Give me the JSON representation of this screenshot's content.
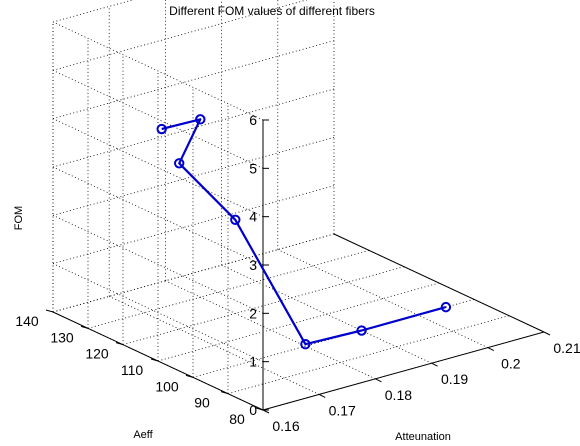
{
  "chart_data": {
    "type": "line",
    "title": "Different FOM values of different fibers",
    "xlabel": "Atteunation",
    "ylabel": "Aeff",
    "zlabel": "FOM",
    "x_ticks": [
      "0.16",
      "0.17",
      "0.18",
      "0.19",
      "0.2",
      "0.21"
    ],
    "y_ticks": [
      "80",
      "90",
      "100",
      "110",
      "120",
      "130",
      "140"
    ],
    "z_ticks": [
      "0",
      "1",
      "2",
      "3",
      "4",
      "5",
      "6"
    ],
    "xlim": [
      0.16,
      0.21
    ],
    "ylim": [
      80,
      140
    ],
    "zlim": [
      0,
      6
    ],
    "grid": true,
    "projection": "3d",
    "series": [
      {
        "color": "#0000cc",
        "marker": "circle",
        "points": [
          {
            "x": 0.17,
            "y": 125,
            "z": 3.97
          },
          {
            "x": 0.175,
            "y": 122,
            "z": 4.11
          },
          {
            "x": 0.17,
            "y": 120,
            "z": 3.43
          },
          {
            "x": 0.175,
            "y": 112,
            "z": 2.37
          },
          {
            "x": 0.18,
            "y": 100,
            "z": 0.04
          },
          {
            "x": 0.19,
            "y": 100,
            "z": 0.0
          },
          {
            "x": 0.205,
            "y": 100,
            "z": 0.0
          }
        ]
      }
    ]
  }
}
